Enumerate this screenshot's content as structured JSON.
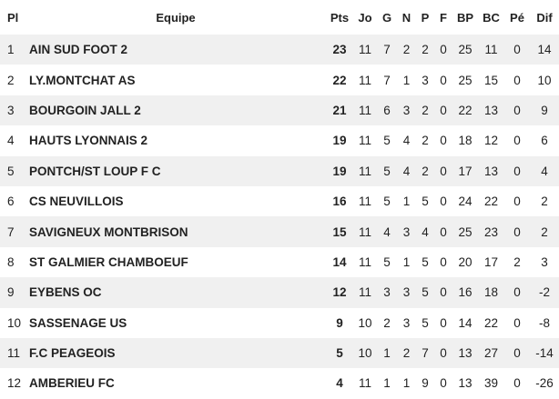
{
  "table": {
    "header": [
      "Pl",
      "Equipe",
      "Pts",
      "Jo",
      "G",
      "N",
      "P",
      "F",
      "BP",
      "BC",
      "Pé",
      "Dif"
    ],
    "rows": [
      [
        1,
        "AIN SUD FOOT 2",
        23,
        11,
        7,
        2,
        2,
        0,
        25,
        11,
        0,
        14
      ],
      [
        2,
        "LY.MONTCHAT AS",
        22,
        11,
        7,
        1,
        3,
        0,
        25,
        15,
        0,
        10
      ],
      [
        3,
        "BOURGOIN JALL 2",
        21,
        11,
        6,
        3,
        2,
        0,
        22,
        13,
        0,
        9
      ],
      [
        4,
        "HAUTS LYONNAIS 2",
        19,
        11,
        5,
        4,
        2,
        0,
        18,
        12,
        0,
        6
      ],
      [
        5,
        "PONTCH/ST LOUP F C",
        19,
        11,
        5,
        4,
        2,
        0,
        17,
        13,
        0,
        4
      ],
      [
        6,
        "CS NEUVILLOIS",
        16,
        11,
        5,
        1,
        5,
        0,
        24,
        22,
        0,
        2
      ],
      [
        7,
        "SAVIGNEUX MONTBRISON",
        15,
        11,
        4,
        3,
        4,
        0,
        25,
        23,
        0,
        2
      ],
      [
        8,
        "ST GALMIER CHAMBOEUF",
        14,
        11,
        5,
        1,
        5,
        0,
        20,
        17,
        2,
        3
      ],
      [
        9,
        "EYBENS OC",
        12,
        11,
        3,
        3,
        5,
        0,
        16,
        18,
        0,
        -2
      ],
      [
        10,
        "SASSENAGE US",
        9,
        10,
        2,
        3,
        5,
        0,
        14,
        22,
        0,
        -8
      ],
      [
        11,
        "F.C PEAGEOIS",
        5,
        10,
        1,
        2,
        7,
        0,
        13,
        27,
        0,
        -14
      ],
      [
        12,
        "AMBERIEU FC",
        4,
        11,
        1,
        1,
        9,
        0,
        13,
        39,
        0,
        -26
      ]
    ]
  }
}
